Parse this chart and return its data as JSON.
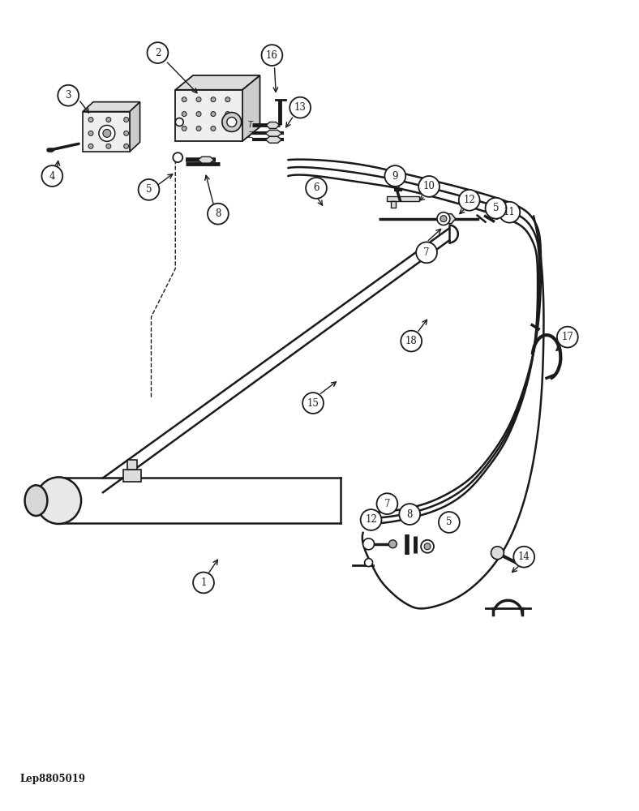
{
  "bg_color": "#ffffff",
  "lc": "#1a1a1a",
  "watermark": "Lep8805019",
  "figsize": [
    7.88,
    10.0
  ],
  "dpi": 100
}
